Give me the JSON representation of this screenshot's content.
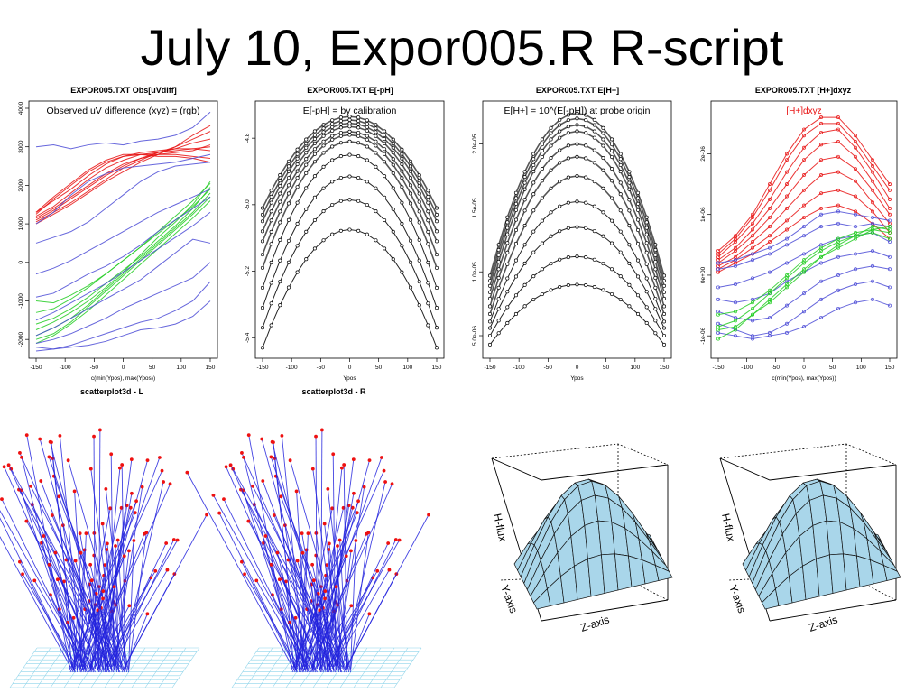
{
  "slide": {
    "title": "July 10, Expor005.R  R-script"
  },
  "colors": {
    "red": "#e81010",
    "blue": "#4b4bd6",
    "green": "#22cc22",
    "black": "#000000",
    "grey": "#444444",
    "surface": "#a9d6ea",
    "floor": "#8ed4ea"
  },
  "chart_data": [
    {
      "type": "line",
      "title": "EXPOR005.TXT Obs[uVdiff]",
      "annotation": "Observed uV difference (xyz) = (rgb)",
      "xlabel": "c(min(Ypos), max(Ypos))",
      "ylabel": "",
      "x": [
        -150,
        -120,
        -90,
        -60,
        -30,
        0,
        30,
        60,
        90,
        120,
        150
      ],
      "xticks": [
        "-150",
        "-100",
        "-50",
        "0",
        "50",
        "100",
        "150"
      ],
      "xtick_values": [
        -150,
        -100,
        -50,
        0,
        50,
        100,
        150
      ],
      "yticks": [
        "-2000",
        "-1000",
        "0",
        "1000",
        "2000",
        "3000",
        "4000"
      ],
      "ytick_values": [
        -2000,
        -1000,
        0,
        1000,
        2000,
        3000,
        4000
      ],
      "xlim": [
        -150,
        150
      ],
      "ylim": [
        -2300,
        4000
      ],
      "series": [
        {
          "color": "red",
          "values": [
            1300,
            1600,
            1900,
            2250,
            2550,
            2750,
            2850,
            2900,
            2950,
            2950,
            2900
          ]
        },
        {
          "color": "red",
          "values": [
            1200,
            1450,
            1800,
            2150,
            2450,
            2650,
            2800,
            2850,
            2900,
            2950,
            3000
          ]
        },
        {
          "color": "red",
          "values": [
            1150,
            1400,
            1700,
            2000,
            2300,
            2550,
            2700,
            2800,
            2850,
            2900,
            3050
          ]
        },
        {
          "color": "red",
          "values": [
            1250,
            1650,
            2000,
            2350,
            2600,
            2750,
            2800,
            2800,
            2800,
            2750,
            2700
          ]
        },
        {
          "color": "red",
          "values": [
            1100,
            1350,
            1650,
            1950,
            2250,
            2500,
            2700,
            2850,
            2950,
            3100,
            3200
          ]
        },
        {
          "color": "red",
          "values": [
            1050,
            1300,
            1550,
            1850,
            2150,
            2450,
            2650,
            2850,
            3000,
            3200,
            3400
          ]
        },
        {
          "color": "red",
          "values": [
            1300,
            1700,
            2050,
            2400,
            2650,
            2800,
            2800,
            2750,
            2750,
            2700,
            2600
          ]
        },
        {
          "color": "red",
          "values": [
            1000,
            1250,
            1500,
            1800,
            2100,
            2350,
            2600,
            2800,
            3000,
            3300,
            3550
          ]
        },
        {
          "color": "green",
          "values": [
            -1600,
            -1450,
            -1200,
            -900,
            -550,
            -200,
            150,
            550,
            950,
            1400,
            1950
          ]
        },
        {
          "color": "green",
          "values": [
            -1900,
            -1700,
            -1450,
            -1100,
            -700,
            -300,
            100,
            500,
            900,
            1300,
            1800
          ]
        },
        {
          "color": "green",
          "values": [
            -1300,
            -1200,
            -950,
            -650,
            -300,
            50,
            400,
            800,
            1200,
            1600,
            2050
          ]
        },
        {
          "color": "green",
          "values": [
            -2100,
            -1900,
            -1600,
            -1250,
            -850,
            -450,
            -50,
            350,
            750,
            1150,
            1600
          ]
        },
        {
          "color": "green",
          "values": [
            -1000,
            -1050,
            -850,
            -600,
            -300,
            50,
            400,
            750,
            1100,
            1450,
            1900
          ]
        },
        {
          "color": "green",
          "values": [
            -1750,
            -1550,
            -1300,
            -1000,
            -650,
            -250,
            200,
            650,
            1050,
            1500,
            2100
          ]
        },
        {
          "color": "green",
          "values": [
            -2000,
            -1850,
            -1550,
            -1150,
            -750,
            -350,
            50,
            450,
            850,
            1250,
            1700
          ]
        },
        {
          "color": "blue",
          "values": [
            3000,
            3050,
            2950,
            3050,
            3100,
            3050,
            3150,
            3200,
            3300,
            3500,
            3900
          ]
        },
        {
          "color": "blue",
          "values": [
            1000,
            1300,
            1750,
            2100,
            2300,
            2450,
            2500,
            2550,
            2600,
            2700,
            2800
          ]
        },
        {
          "color": "blue",
          "values": [
            500,
            650,
            800,
            1050,
            1400,
            1750,
            2100,
            2350,
            2500,
            2550,
            2600
          ]
        },
        {
          "color": "blue",
          "values": [
            -300,
            -150,
            50,
            300,
            550,
            800,
            1050,
            1300,
            1500,
            1700,
            1900
          ]
        },
        {
          "color": "blue",
          "values": [
            -900,
            -800,
            -550,
            -300,
            -100,
            150,
            450,
            800,
            1100,
            1400,
            1700
          ]
        },
        {
          "color": "blue",
          "values": [
            -1500,
            -1300,
            -1050,
            -800,
            -550,
            -250,
            50,
            350,
            650,
            950,
            1300
          ]
        },
        {
          "color": "blue",
          "values": [
            -1900,
            -1700,
            -1450,
            -1200,
            -950,
            -700,
            -450,
            -100,
            250,
            600,
            500
          ]
        },
        {
          "color": "blue",
          "values": [
            -2100,
            -2000,
            -1850,
            -1650,
            -1450,
            -1200,
            -1000,
            -800,
            -600,
            -400,
            0
          ]
        },
        {
          "color": "blue",
          "values": [
            -2200,
            -2250,
            -2150,
            -2000,
            -1850,
            -1700,
            -1550,
            -1450,
            -1250,
            -1000,
            -500
          ]
        },
        {
          "color": "blue",
          "values": [
            -2300,
            -2250,
            -2200,
            -2150,
            -2050,
            -1900,
            -1750,
            -1700,
            -1600,
            -1400,
            -1000
          ]
        }
      ]
    },
    {
      "type": "line",
      "title": "EXPOR005.TXT E[-pH]",
      "annotation": "E[-pH] = by calibration",
      "xlabel": "Ypos",
      "ylabel": "",
      "x": [
        -150,
        -135,
        -120,
        -105,
        -90,
        -75,
        -60,
        -45,
        -30,
        -15,
        0,
        15,
        30,
        45,
        60,
        75,
        90,
        105,
        120,
        135,
        150
      ],
      "xticks": [
        "-150",
        "-100",
        "-50",
        "0",
        "50",
        "100",
        "150"
      ],
      "xtick_values": [
        -150,
        -100,
        -50,
        0,
        50,
        100,
        150
      ],
      "yticks": [
        "-5.4",
        "-5.2",
        "-5.0",
        "-4.8"
      ],
      "ytick_values": [
        -5.4,
        -5.2,
        -5.0,
        -4.8
      ],
      "xlim": [
        -150,
        150
      ],
      "ylim": [
        -5.44,
        -4.71
      ],
      "peaks": [
        -4.735,
        -4.745,
        -4.755,
        -4.765,
        -4.78,
        -4.79,
        -4.81,
        -4.85,
        -4.915,
        -4.985,
        -5.075
      ],
      "ends": [
        -5.01,
        -5.03,
        -5.05,
        -5.08,
        -5.11,
        -5.15,
        -5.19,
        -5.25,
        -5.31,
        -5.37,
        -5.43
      ]
    },
    {
      "type": "line",
      "title": "EXPOR005.TXT E[H+]",
      "annotation": "E[H+] = 10^(E[-pH]) at probe origin",
      "xlabel": "Ypos",
      "ylabel": "",
      "x": [
        -150,
        -135,
        -120,
        -105,
        -90,
        -75,
        -60,
        -45,
        -30,
        -15,
        0,
        15,
        30,
        45,
        60,
        75,
        90,
        105,
        120,
        135,
        150
      ],
      "xticks": [
        "-150",
        "-100",
        "-50",
        "0",
        "50",
        "100",
        "150"
      ],
      "xtick_values": [
        -150,
        -100,
        -50,
        0,
        50,
        100,
        150
      ],
      "yticks": [
        "5.0e-06",
        "1.0e-05",
        "1.5e-05",
        "2.0e-05"
      ],
      "ytick_values": [
        5e-06,
        1e-05,
        1.5e-05,
        2e-05
      ],
      "xlim": [
        -150,
        150
      ],
      "ylim": [
        3.8e-06,
        2.28e-05
      ],
      "peaks": [
        2.24e-05,
        2.2e-05,
        2.15e-05,
        2.1e-05,
        2e-05,
        1.9e-05,
        1.75e-05,
        1.55e-05,
        1.35e-05,
        1.12e-05,
        9e-06
      ],
      "ends": [
        9.7e-06,
        9.3e-06,
        8.9e-06,
        8.4e-06,
        7.9e-06,
        7.3e-06,
        6.7e-06,
        6.1e-06,
        5.6e-06,
        5e-06,
        4.3e-06
      ]
    },
    {
      "type": "line",
      "title": "EXPOR005.TXT [H+]dxyz",
      "annotation": "[H+]dxyz",
      "xlabel": "c(min(Ypos), max(Ypos))",
      "ylabel": "",
      "x": [
        -150,
        -120,
        -90,
        -60,
        -30,
        0,
        30,
        60,
        90,
        120,
        150
      ],
      "xticks": [
        "-150",
        "-100",
        "-50",
        "0",
        "50",
        "100",
        "150"
      ],
      "xtick_values": [
        -150,
        -100,
        -50,
        0,
        50,
        100,
        150
      ],
      "yticks": [
        "-1e-06",
        "0e+00",
        "1e-06",
        "2e-06"
      ],
      "ytick_values": [
        -1e-06,
        0,
        1e-06,
        2e-06
      ],
      "xlim": [
        -150,
        150
      ],
      "ylim": [
        -1.25e-06,
        2.75e-06
      ],
      "series": [
        {
          "color": "red",
          "values": [
            4e-07,
            6.5e-07,
            1e-06,
            1.5e-06,
            2e-06,
            2.4e-06,
            2.6e-06,
            2.6e-06,
            2.3e-06,
            1.9e-06,
            1.5e-06
          ]
        },
        {
          "color": "red",
          "values": [
            3.5e-07,
            6e-07,
            9.5e-07,
            1.4e-06,
            1.9e-06,
            2.3e-06,
            2.5e-06,
            2.5e-06,
            2.2e-06,
            1.8e-06,
            1.4e-06
          ]
        },
        {
          "color": "red",
          "values": [
            3e-07,
            5.5e-07,
            8.5e-07,
            1.25e-06,
            1.7e-06,
            2.1e-06,
            2.35e-06,
            2.4e-06,
            2.1e-06,
            1.7e-06,
            1.25e-06
          ]
        },
        {
          "color": "red",
          "values": [
            2.5e-07,
            4.5e-07,
            7.5e-07,
            1.1e-06,
            1.5e-06,
            1.9e-06,
            2.15e-06,
            2.2e-06,
            1.95e-06,
            1.55e-06,
            1.1e-06
          ]
        },
        {
          "color": "red",
          "values": [
            2e-07,
            4e-07,
            6.5e-07,
            9.5e-07,
            1.3e-06,
            1.65e-06,
            1.9e-06,
            1.95e-06,
            1.75e-06,
            1.4e-06,
            1e-06
          ]
        },
        {
          "color": "red",
          "values": [
            1.5e-07,
            3e-07,
            5.5e-07,
            8e-07,
            1.1e-06,
            1.4e-06,
            1.65e-06,
            1.7e-06,
            1.55e-06,
            1.2e-06,
            8.5e-07
          ]
        },
        {
          "color": "red",
          "values": [
            1e-07,
            2.5e-07,
            4.5e-07,
            6.5e-07,
            9e-07,
            1.15e-06,
            1.35e-06,
            1.4e-06,
            1.3e-06,
            1.05e-06,
            7e-07
          ]
        },
        {
          "color": "red",
          "values": [
            5e-08,
            2e-07,
            3.5e-07,
            5.5e-07,
            7.5e-07,
            9.5e-07,
            1.1e-06,
            1.15e-06,
            1.05e-06,
            8.5e-07,
            6e-07
          ]
        },
        {
          "color": "blue",
          "values": [
            2e-07,
            2.5e-07,
            3.5e-07,
            4.5e-07,
            6e-07,
            8e-07,
            1e-06,
            1.05e-06,
            1e-06,
            9.5e-07,
            9e-07
          ]
        },
        {
          "color": "blue",
          "values": [
            1e-07,
            1.5e-07,
            2.5e-07,
            3.5e-07,
            5e-07,
            6.5e-07,
            8e-07,
            8.5e-07,
            8e-07,
            8.5e-07,
            8e-07
          ]
        },
        {
          "color": "blue",
          "values": [
            -2e-07,
            -1.5e-07,
            -5e-08,
            5e-08,
            2e-07,
            3.5e-07,
            5e-07,
            6e-07,
            6.5e-07,
            7e-07,
            5.5e-07
          ]
        },
        {
          "color": "blue",
          "values": [
            -4e-07,
            -4.5e-07,
            -4e-07,
            -3e-07,
            -1e-07,
            5e-08,
            2e-07,
            3e-07,
            3.5e-07,
            4e-07,
            3e-07
          ]
        },
        {
          "color": "blue",
          "values": [
            -6e-07,
            -7e-07,
            -7.5e-07,
            -7e-07,
            -5e-07,
            -3e-07,
            -1e-07,
            0.0,
            1e-07,
            1.5e-07,
            1e-07
          ]
        },
        {
          "color": "blue",
          "values": [
            -8e-07,
            -9e-07,
            -1e-06,
            -9.5e-07,
            -8e-07,
            -6e-07,
            -4e-07,
            -2.5e-07,
            -1.5e-07,
            -1e-07,
            -2e-07
          ]
        },
        {
          "color": "blue",
          "values": [
            -9.5e-07,
            -1e-06,
            -1.05e-06,
            -1e-06,
            -9.5e-07,
            -8.5e-07,
            -7e-07,
            -5.5e-07,
            -4.5e-07,
            -4e-07,
            -5e-07
          ]
        },
        {
          "color": "green",
          "values": [
            -1.05e-06,
            -9e-07,
            -6.5e-07,
            -4e-07,
            -1.5e-07,
            1e-07,
            3e-07,
            4.5e-07,
            6e-07,
            7.5e-07,
            8e-07
          ]
        },
        {
          "color": "green",
          "values": [
            -8.5e-07,
            -7.5e-07,
            -5.5e-07,
            -3e-07,
            -5e-08,
            2e-07,
            4e-07,
            5.5e-07,
            6.5e-07,
            7e-07,
            6e-07
          ]
        },
        {
          "color": "green",
          "values": [
            -6.5e-07,
            -6e-07,
            -4.5e-07,
            -2.5e-07,
            0.0,
            2.5e-07,
            4.5e-07,
            6e-07,
            7e-07,
            7.5e-07,
            7e-07
          ]
        },
        {
          "color": "green",
          "values": [
            -9e-07,
            -8.5e-07,
            -6.5e-07,
            -4.5e-07,
            -2e-07,
            5e-08,
            3e-07,
            5e-07,
            6.5e-07,
            8e-07,
            7.5e-07
          ]
        }
      ]
    },
    {
      "type": "scatter",
      "title": "scatterplot3d - L",
      "projection": "3d"
    },
    {
      "type": "scatter",
      "title": "scatterplot3d - R",
      "projection": "3d"
    },
    {
      "type": "area",
      "title": "",
      "projection": "3d-surface",
      "axis_labels": [
        "H-flux",
        "Y-axis",
        "Z-axis"
      ]
    },
    {
      "type": "area",
      "title": "",
      "projection": "3d-surface",
      "axis_labels": [
        "H-flux",
        "Y-axis",
        "Z-axis"
      ]
    }
  ]
}
